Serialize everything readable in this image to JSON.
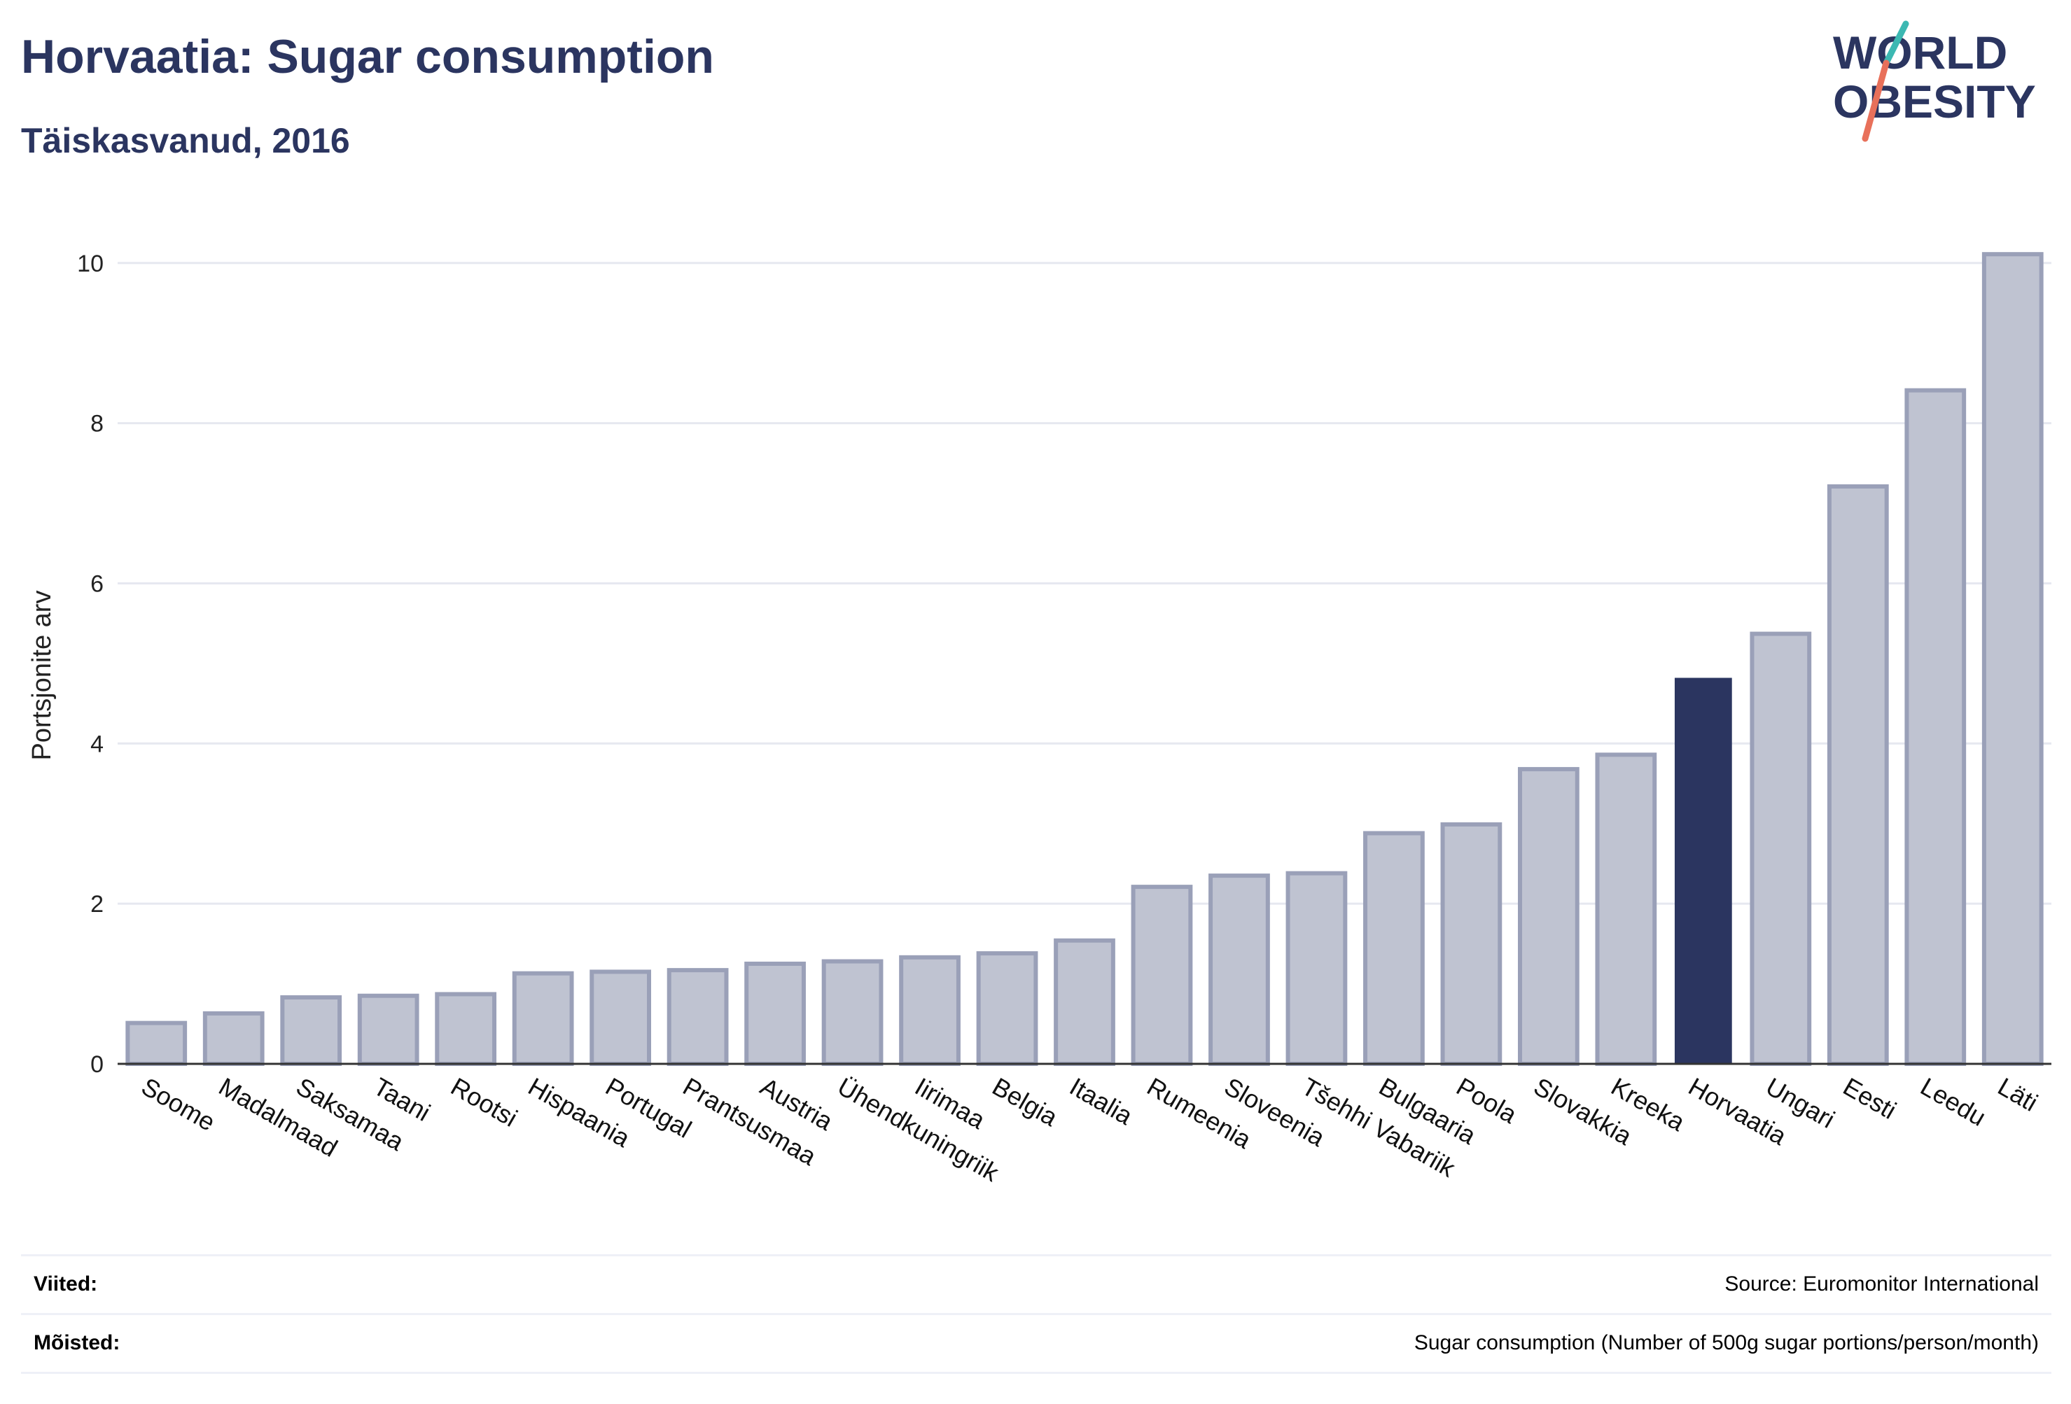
{
  "header": {
    "title": "Horvaatia: Sugar consumption",
    "subtitle": "Täiskasvanud, 2016"
  },
  "logo": {
    "line1": "WORLD",
    "line2": "OBESITY",
    "colors": [
      "#2b3560",
      "#3cb8b2",
      "#e8705a"
    ]
  },
  "chart_data": {
    "type": "bar",
    "ylabel": "Portsjonite arv",
    "ylim": [
      0,
      10.4
    ],
    "yticks": [
      0,
      2,
      4,
      6,
      8,
      10
    ],
    "grid": true,
    "categories": [
      "Soome",
      "Madalmaad",
      "Saksamaa",
      "Taani",
      "Rootsi",
      "Hispaania",
      "Portugal",
      "Prantsusmaa",
      "Austria",
      "Ühendkuningriik",
      "Iirimaa",
      "Belgia",
      "Itaalia",
      "Rumeenia",
      "Sloveenia",
      "Tšehhi Vabariik",
      "Bulgaaria",
      "Poola",
      "Slovakkia",
      "Kreeka",
      "Horvaatia",
      "Ungari",
      "Eesti",
      "Leedu",
      "Läti"
    ],
    "values": [
      0.51,
      0.63,
      0.83,
      0.85,
      0.87,
      1.13,
      1.15,
      1.17,
      1.25,
      1.28,
      1.33,
      1.38,
      1.54,
      2.21,
      2.35,
      2.38,
      2.88,
      2.99,
      3.68,
      3.86,
      4.82,
      5.37,
      7.21,
      8.41,
      10.11
    ],
    "highlight": "Horvaatia",
    "colors": {
      "bar": "#bfc3d1",
      "bar_border": "#9aa0b8",
      "highlight": "#2b3560",
      "grid": "#e6e8f0",
      "axis": "#333333"
    }
  },
  "footer": {
    "references_label": "Viited:",
    "references_value": "Source: Euromonitor International",
    "definitions_label": "Mõisted:",
    "definitions_value": "Sugar consumption (Number of 500g sugar portions/person/month)"
  }
}
